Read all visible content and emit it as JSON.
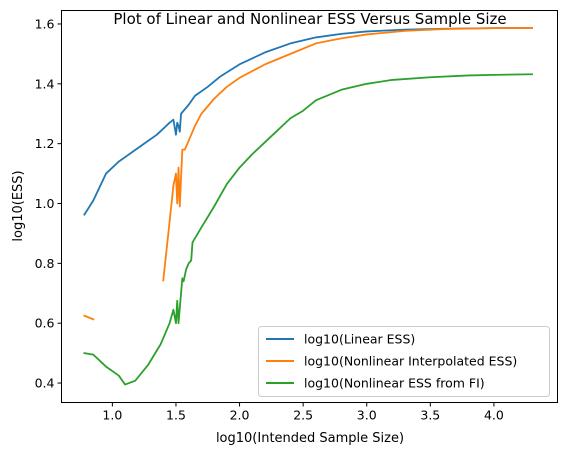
{
  "chart_data": {
    "type": "line",
    "title": "Plot of Linear and Nonlinear ESS Versus Sample Size",
    "xlabel": "log10(Intended Sample Size)",
    "ylabel": "log10(ESS)",
    "xlim": [
      0.6,
      4.5
    ],
    "ylim": [
      0.335,
      1.645
    ],
    "x_ticks": [
      1.0,
      1.5,
      2.0,
      2.5,
      3.0,
      3.5,
      4.0
    ],
    "x_tick_labels": [
      "1.0",
      "1.5",
      "2.0",
      "2.5",
      "3.0",
      "3.5",
      "4.0"
    ],
    "y_ticks": [
      0.4,
      0.6,
      0.8,
      1.0,
      1.2,
      1.4,
      1.6
    ],
    "y_tick_labels": [
      "0.4",
      "0.6",
      "0.8",
      "1.0",
      "1.2",
      "1.4",
      "1.6"
    ],
    "grid": false,
    "legend_position": "lower-right",
    "series": [
      {
        "name": "log10(Linear ESS)",
        "color": "#1f77b4",
        "segments": [
          [
            [
              0.78,
              0.963
            ],
            [
              0.85,
              1.01
            ],
            [
              0.95,
              1.1
            ],
            [
              1.05,
              1.14
            ],
            [
              1.15,
              1.17
            ],
            [
              1.25,
              1.2
            ],
            [
              1.35,
              1.23
            ],
            [
              1.45,
              1.27
            ],
            [
              1.48,
              1.28
            ],
            [
              1.5,
              1.23
            ],
            [
              1.51,
              1.27
            ],
            [
              1.52,
              1.26
            ],
            [
              1.53,
              1.24
            ],
            [
              1.54,
              1.3
            ],
            [
              1.56,
              1.31
            ],
            [
              1.6,
              1.33
            ],
            [
              1.65,
              1.36
            ],
            [
              1.75,
              1.39
            ],
            [
              1.85,
              1.425
            ],
            [
              2.0,
              1.465
            ],
            [
              2.2,
              1.505
            ],
            [
              2.4,
              1.535
            ],
            [
              2.6,
              1.555
            ],
            [
              2.8,
              1.567
            ],
            [
              3.0,
              1.575
            ],
            [
              3.3,
              1.581
            ],
            [
              3.6,
              1.584
            ],
            [
              4.0,
              1.586
            ],
            [
              4.3,
              1.587
            ]
          ]
        ]
      },
      {
        "name": "log10(Nonlinear Interpolated ESS)",
        "color": "#ff7f0e",
        "segments": [
          [
            [
              0.78,
              0.625
            ],
            [
              0.85,
              0.613
            ]
          ],
          [
            [
              1.4,
              0.743
            ],
            [
              1.44,
              0.9
            ],
            [
              1.48,
              1.06
            ],
            [
              1.5,
              1.1
            ],
            [
              1.51,
              1.0
            ],
            [
              1.52,
              1.12
            ],
            [
              1.53,
              0.99
            ],
            [
              1.55,
              1.18
            ],
            [
              1.57,
              1.18
            ],
            [
              1.6,
              1.21
            ],
            [
              1.62,
              1.23
            ],
            [
              1.65,
              1.26
            ],
            [
              1.7,
              1.3
            ],
            [
              1.8,
              1.35
            ],
            [
              1.9,
              1.39
            ],
            [
              2.0,
              1.42
            ],
            [
              2.2,
              1.465
            ],
            [
              2.4,
              1.5
            ],
            [
              2.6,
              1.535
            ],
            [
              2.8,
              1.552
            ],
            [
              3.0,
              1.565
            ],
            [
              3.3,
              1.577
            ],
            [
              3.6,
              1.583
            ],
            [
              4.0,
              1.586
            ],
            [
              4.3,
              1.587
            ]
          ]
        ]
      },
      {
        "name": "log10(Nonlinear ESS from FI)",
        "color": "#2ca02c",
        "segments": [
          [
            [
              0.78,
              0.5
            ],
            [
              0.85,
              0.495
            ],
            [
              0.95,
              0.455
            ],
            [
              1.05,
              0.425
            ],
            [
              1.1,
              0.395
            ],
            [
              1.18,
              0.408
            ],
            [
              1.28,
              0.46
            ],
            [
              1.38,
              0.53
            ],
            [
              1.45,
              0.6
            ],
            [
              1.48,
              0.645
            ],
            [
              1.5,
              0.6
            ],
            [
              1.51,
              0.675
            ],
            [
              1.52,
              0.6
            ],
            [
              1.55,
              0.75
            ],
            [
              1.56,
              0.74
            ],
            [
              1.58,
              0.78
            ],
            [
              1.6,
              0.8
            ],
            [
              1.62,
              0.81
            ],
            [
              1.63,
              0.87
            ],
            [
              1.7,
              0.92
            ],
            [
              1.8,
              0.99
            ],
            [
              1.9,
              1.065
            ],
            [
              2.0,
              1.12
            ],
            [
              2.1,
              1.165
            ],
            [
              2.2,
              1.205
            ],
            [
              2.3,
              1.245
            ],
            [
              2.4,
              1.285
            ],
            [
              2.5,
              1.31
            ],
            [
              2.6,
              1.345
            ],
            [
              2.8,
              1.38
            ],
            [
              3.0,
              1.4
            ],
            [
              3.2,
              1.413
            ],
            [
              3.5,
              1.422
            ],
            [
              3.8,
              1.428
            ],
            [
              4.0,
              1.43
            ],
            [
              4.3,
              1.432
            ]
          ]
        ]
      }
    ]
  }
}
